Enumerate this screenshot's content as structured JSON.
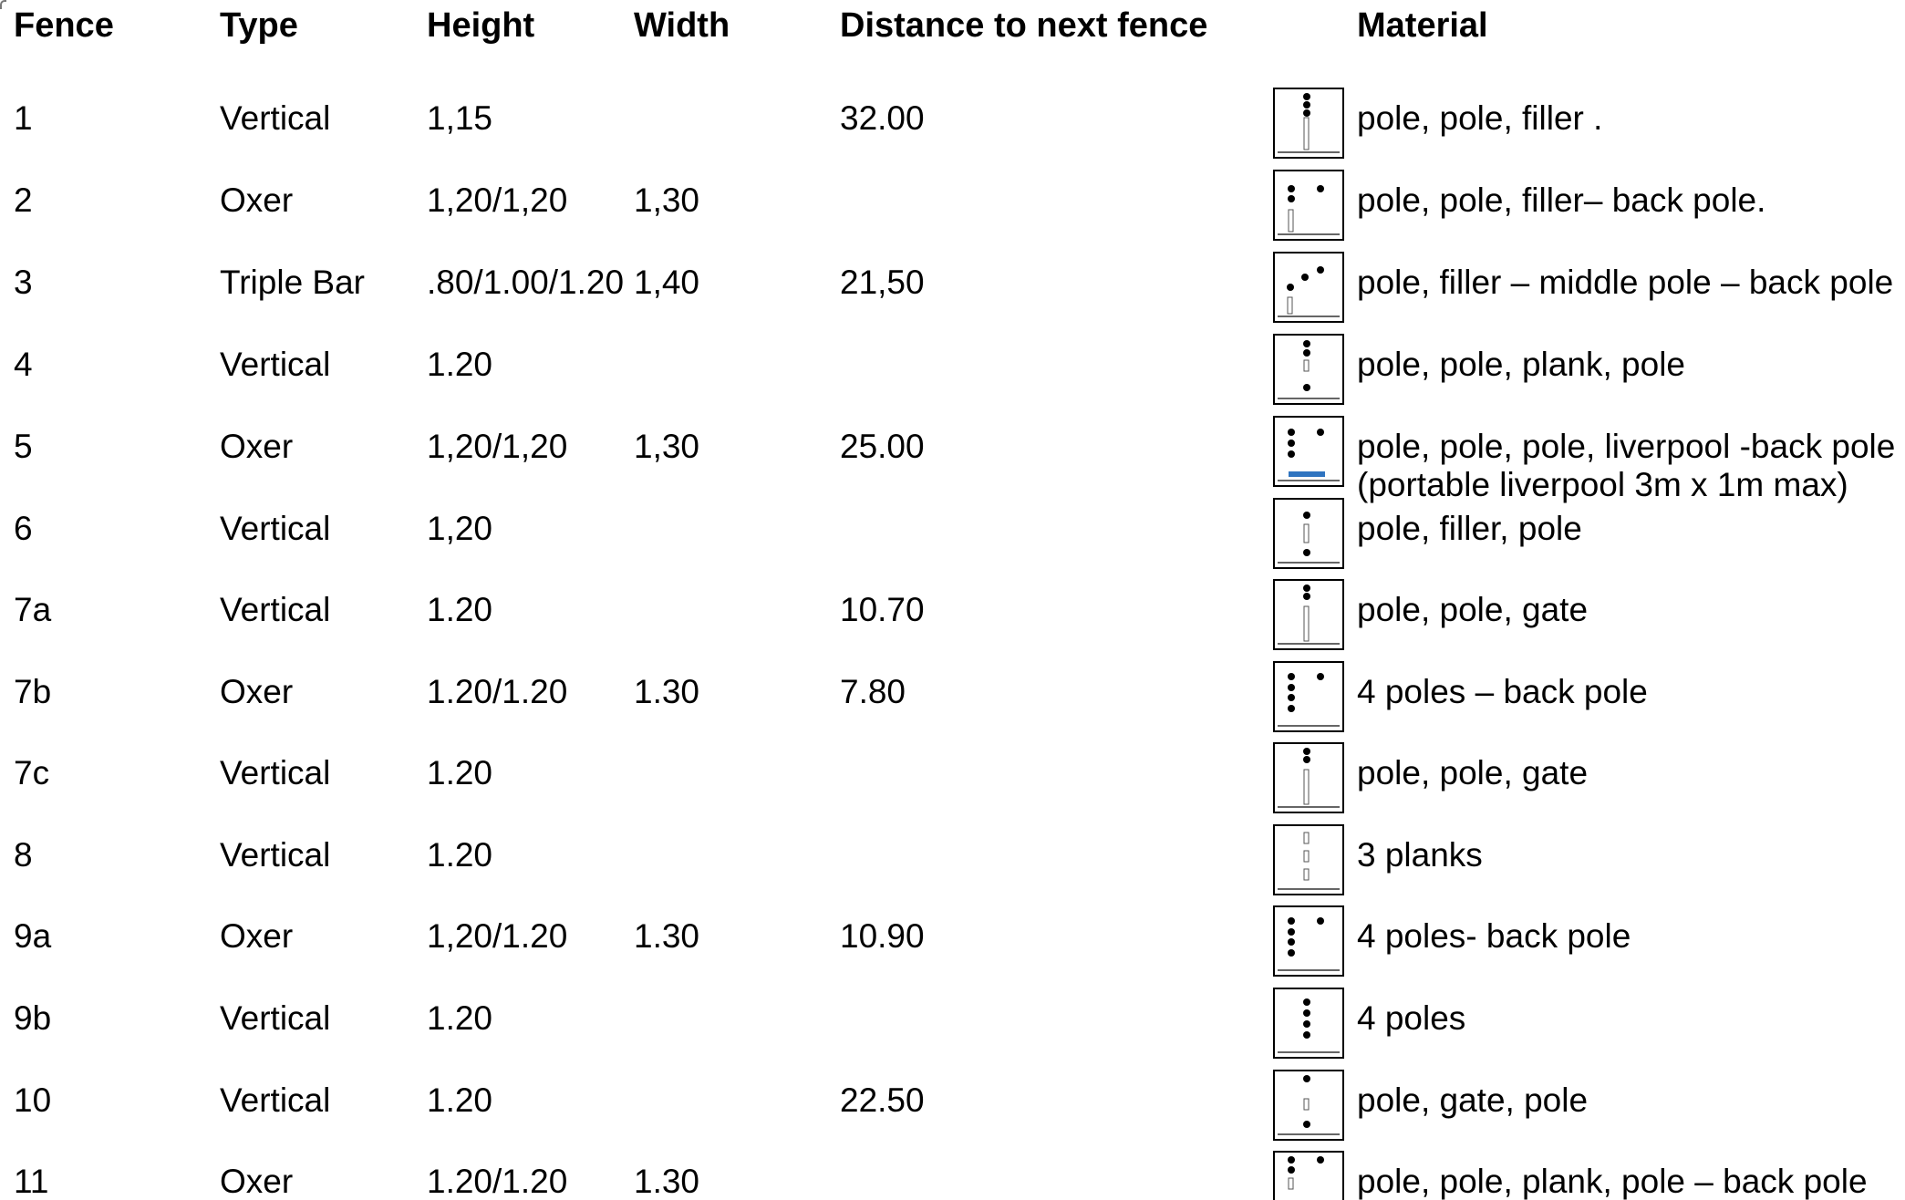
{
  "headers": {
    "fence": "Fence",
    "type": "Type",
    "height": "Height",
    "width": "Width",
    "distance": "Distance to next fence",
    "material": "Material"
  },
  "rows": [
    {
      "fence": "1",
      "type": "Vertical",
      "height": "1,15",
      "width": "",
      "distance": "32.00",
      "material": "pole, pole, filler .",
      "diagram": "vertical-pole-pole-filler"
    },
    {
      "fence": "2",
      "type": "Oxer",
      "height": "1,20/1,20",
      "width": "1,30",
      "distance": "",
      "material": "pole, pole, filler– back pole.",
      "diagram": "oxer-pole-pole-filler-back-pole"
    },
    {
      "fence": "3",
      "type": "Triple Bar",
      "height": ".80/1.00/1.20",
      "width": "1,40",
      "distance": "21,50",
      "material": "pole, filler – middle pole – back pole",
      "diagram": "triple-bar"
    },
    {
      "fence": "4",
      "type": "Vertical",
      "height": "1.20",
      "width": "",
      "distance": "",
      "material": "pole, pole, plank, pole",
      "diagram": "vertical-pole-pole-plank-pole"
    },
    {
      "fence": "5",
      "type": "Oxer",
      "height": "1,20/1,20",
      "width": "1,30",
      "distance": "25.00",
      "material": "pole, pole, pole, liverpool -back pole",
      "note": "(portable liverpool 3m x 1m max)",
      "diagram": "oxer-liverpool"
    },
    {
      "fence": "6",
      "type": "Vertical",
      "height": "1,20",
      "width": "",
      "distance": "",
      "material": "pole, filler, pole",
      "diagram": "vertical-pole-filler-pole"
    },
    {
      "fence": "7a",
      "type": "Vertical",
      "height": "1.20",
      "width": "",
      "distance": "10.70",
      "material": "pole, pole, gate",
      "diagram": "vertical-pole-pole-gate"
    },
    {
      "fence": "7b",
      "type": "Oxer",
      "height": "1.20/1.20",
      "width": "1.30",
      "distance": "7.80",
      "material": "4 poles – back pole",
      "diagram": "oxer-4-poles"
    },
    {
      "fence": "7c",
      "type": "Vertical",
      "height": "1.20",
      "width": "",
      "distance": "",
      "material": "pole, pole, gate",
      "diagram": "vertical-pole-pole-gate"
    },
    {
      "fence": "8",
      "type": "Vertical",
      "height": "1.20",
      "width": "",
      "distance": "",
      "material": "3 planks",
      "diagram": "vertical-3-planks"
    },
    {
      "fence": "9a",
      "type": "Oxer",
      "height": "1,20/1.20",
      "width": "1.30",
      "distance": "10.90",
      "material": "4 poles- back pole",
      "diagram": "oxer-4-poles"
    },
    {
      "fence": "9b",
      "type": "Vertical",
      "height": "1.20",
      "width": "",
      "distance": "",
      "material": "4 poles",
      "diagram": "vertical-4-poles"
    },
    {
      "fence": "10",
      "type": "Vertical",
      "height": "1.20",
      "width": "",
      "distance": "22.50",
      "material": "pole, gate, pole",
      "diagram": "vertical-pole-gate-pole"
    },
    {
      "fence": "11",
      "type": "Oxer",
      "height": "1.20/1.20",
      "width": "1.30",
      "distance": "",
      "material": "pole, pole, plank, pole – back pole",
      "diagram": "oxer-pole-pole-plank-pole"
    }
  ]
}
